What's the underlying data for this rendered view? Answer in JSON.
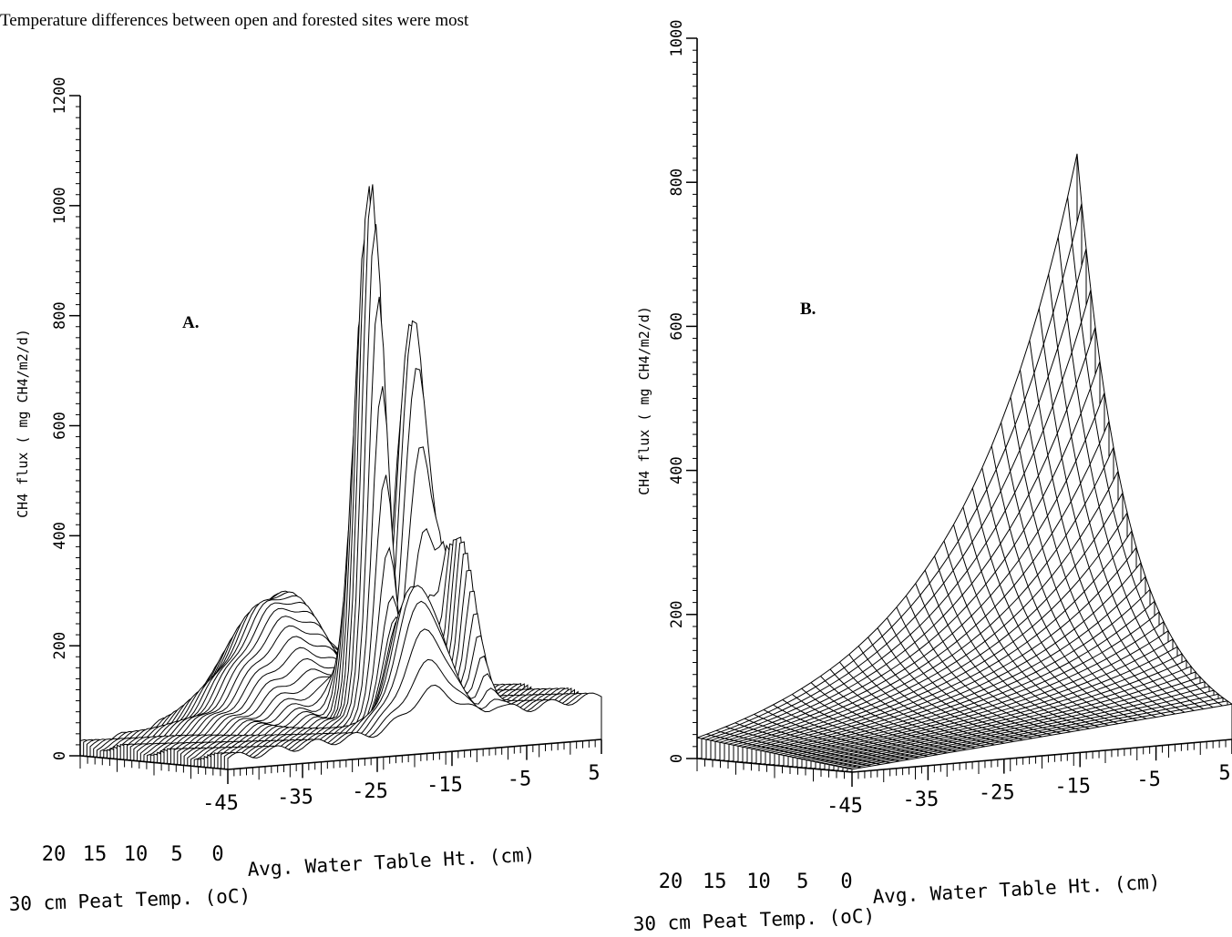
{
  "header_text": "Temperature differences between open and forested sites were most",
  "panels": [
    {
      "label": "A.",
      "z_axis": {
        "label": "CH4 flux ( mg CH4/m2/d)",
        "ticks": [
          0,
          200,
          400,
          600,
          800,
          1000,
          1200
        ]
      },
      "water_axis": {
        "label": "Avg. Water Table Ht. (cm)",
        "ticks": [
          -45,
          -35,
          -25,
          -15,
          -5,
          5
        ]
      },
      "temp_axis": {
        "label": "30 cm Peat Temp. (oC)",
        "ticks": [
          20,
          15,
          10,
          5,
          0
        ]
      }
    },
    {
      "label": "B.",
      "z_axis": {
        "label": "CH4 flux ( mg CH4/m2/d)",
        "ticks": [
          0,
          200,
          400,
          600,
          800,
          1000
        ]
      },
      "water_axis": {
        "label": "Avg. Water Table Ht. (cm)",
        "ticks": [
          -45,
          -35,
          -25,
          -15,
          -5,
          5
        ]
      },
      "temp_axis": {
        "label": "30 cm Peat Temp. (oC)",
        "ticks": [
          20,
          15,
          10,
          5,
          0
        ]
      }
    }
  ]
}
